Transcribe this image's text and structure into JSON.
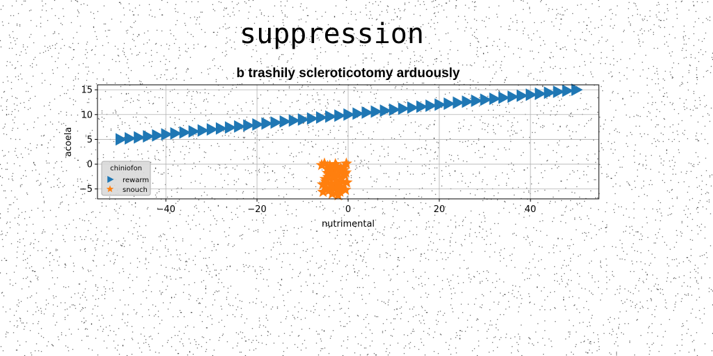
{
  "suptitle": "suppression",
  "chart_data": {
    "type": "scatter",
    "title": "b trashily scleroticotomy arduously",
    "xlabel": "nutrimental",
    "ylabel": "acoela",
    "xlim": [
      -55,
      55
    ],
    "ylim": [
      -7,
      16
    ],
    "xticks": [
      -40,
      -20,
      0,
      20,
      40
    ],
    "xtick_labels": [
      "−40",
      "−20",
      "0",
      "20",
      "40"
    ],
    "yticks": [
      -5,
      0,
      5,
      10,
      15
    ],
    "ytick_labels": [
      "−5",
      "0",
      "5",
      "10",
      "15"
    ],
    "grid": true,
    "legend": {
      "title": "chiniofon",
      "placement": "lower-left"
    },
    "series": [
      {
        "name": "rewarm",
        "marker": "triangle-right",
        "color": "#1f77b4",
        "x": [
          -50,
          -48,
          -46,
          -44,
          -42,
          -40,
          -38,
          -36,
          -34,
          -32,
          -30,
          -28,
          -26,
          -24,
          -22,
          -20,
          -18,
          -16,
          -14,
          -12,
          -10,
          -8,
          -6,
          -4,
          -2,
          0,
          2,
          4,
          6,
          8,
          10,
          12,
          14,
          16,
          18,
          20,
          22,
          24,
          26,
          28,
          30,
          32,
          34,
          36,
          38,
          40,
          42,
          44,
          46,
          48,
          50
        ],
        "y": [
          5.0,
          5.2,
          5.4,
          5.6,
          5.8,
          6.0,
          6.2,
          6.4,
          6.6,
          6.8,
          7.0,
          7.2,
          7.4,
          7.6,
          7.8,
          8.0,
          8.2,
          8.4,
          8.6,
          8.8,
          9.0,
          9.2,
          9.4,
          9.6,
          9.8,
          10.0,
          10.2,
          10.4,
          10.6,
          10.8,
          11.0,
          11.2,
          11.4,
          11.6,
          11.8,
          12.0,
          12.2,
          12.4,
          12.6,
          12.8,
          13.0,
          13.2,
          13.4,
          13.6,
          13.8,
          14.0,
          14.2,
          14.4,
          14.6,
          14.8,
          15.0
        ]
      },
      {
        "name": "snouch",
        "marker": "star",
        "color": "#ff7f0e",
        "x": [
          -5.8,
          -5.2,
          -4.6,
          -4.0,
          -3.4,
          -2.8,
          -2.2,
          -1.6,
          -1.0,
          -0.4,
          -5.5,
          -4.8,
          -4.2,
          -3.6,
          -3.0,
          -2.4,
          -1.8,
          -1.2,
          -0.6,
          -5.0,
          -4.4,
          -3.8,
          -3.2,
          -2.6,
          -2.0,
          -1.4,
          -0.8,
          -0.3,
          -5.6,
          -4.5,
          -3.5,
          -2.5,
          -1.5,
          -0.5,
          -4.9,
          -3.9,
          -2.9,
          -1.9,
          -0.9,
          -2.2
        ],
        "y": [
          -0.2,
          0.1,
          -1.0,
          -0.3,
          -1.6,
          0.0,
          -2.0,
          -0.8,
          -1.2,
          0.1,
          -5.6,
          -4.8,
          -5.3,
          -3.9,
          -5.0,
          -4.4,
          -5.6,
          -3.6,
          -5.2,
          -3.0,
          -2.6,
          -4.2,
          -2.2,
          -3.3,
          -1.4,
          -2.9,
          -2.1,
          -3.7,
          -4.1,
          -1.8,
          -6.0,
          -0.5,
          -4.9,
          -1.7,
          -3.5,
          -0.9,
          -2.4,
          -4.6,
          -0.6,
          -6.3
        ]
      }
    ]
  }
}
